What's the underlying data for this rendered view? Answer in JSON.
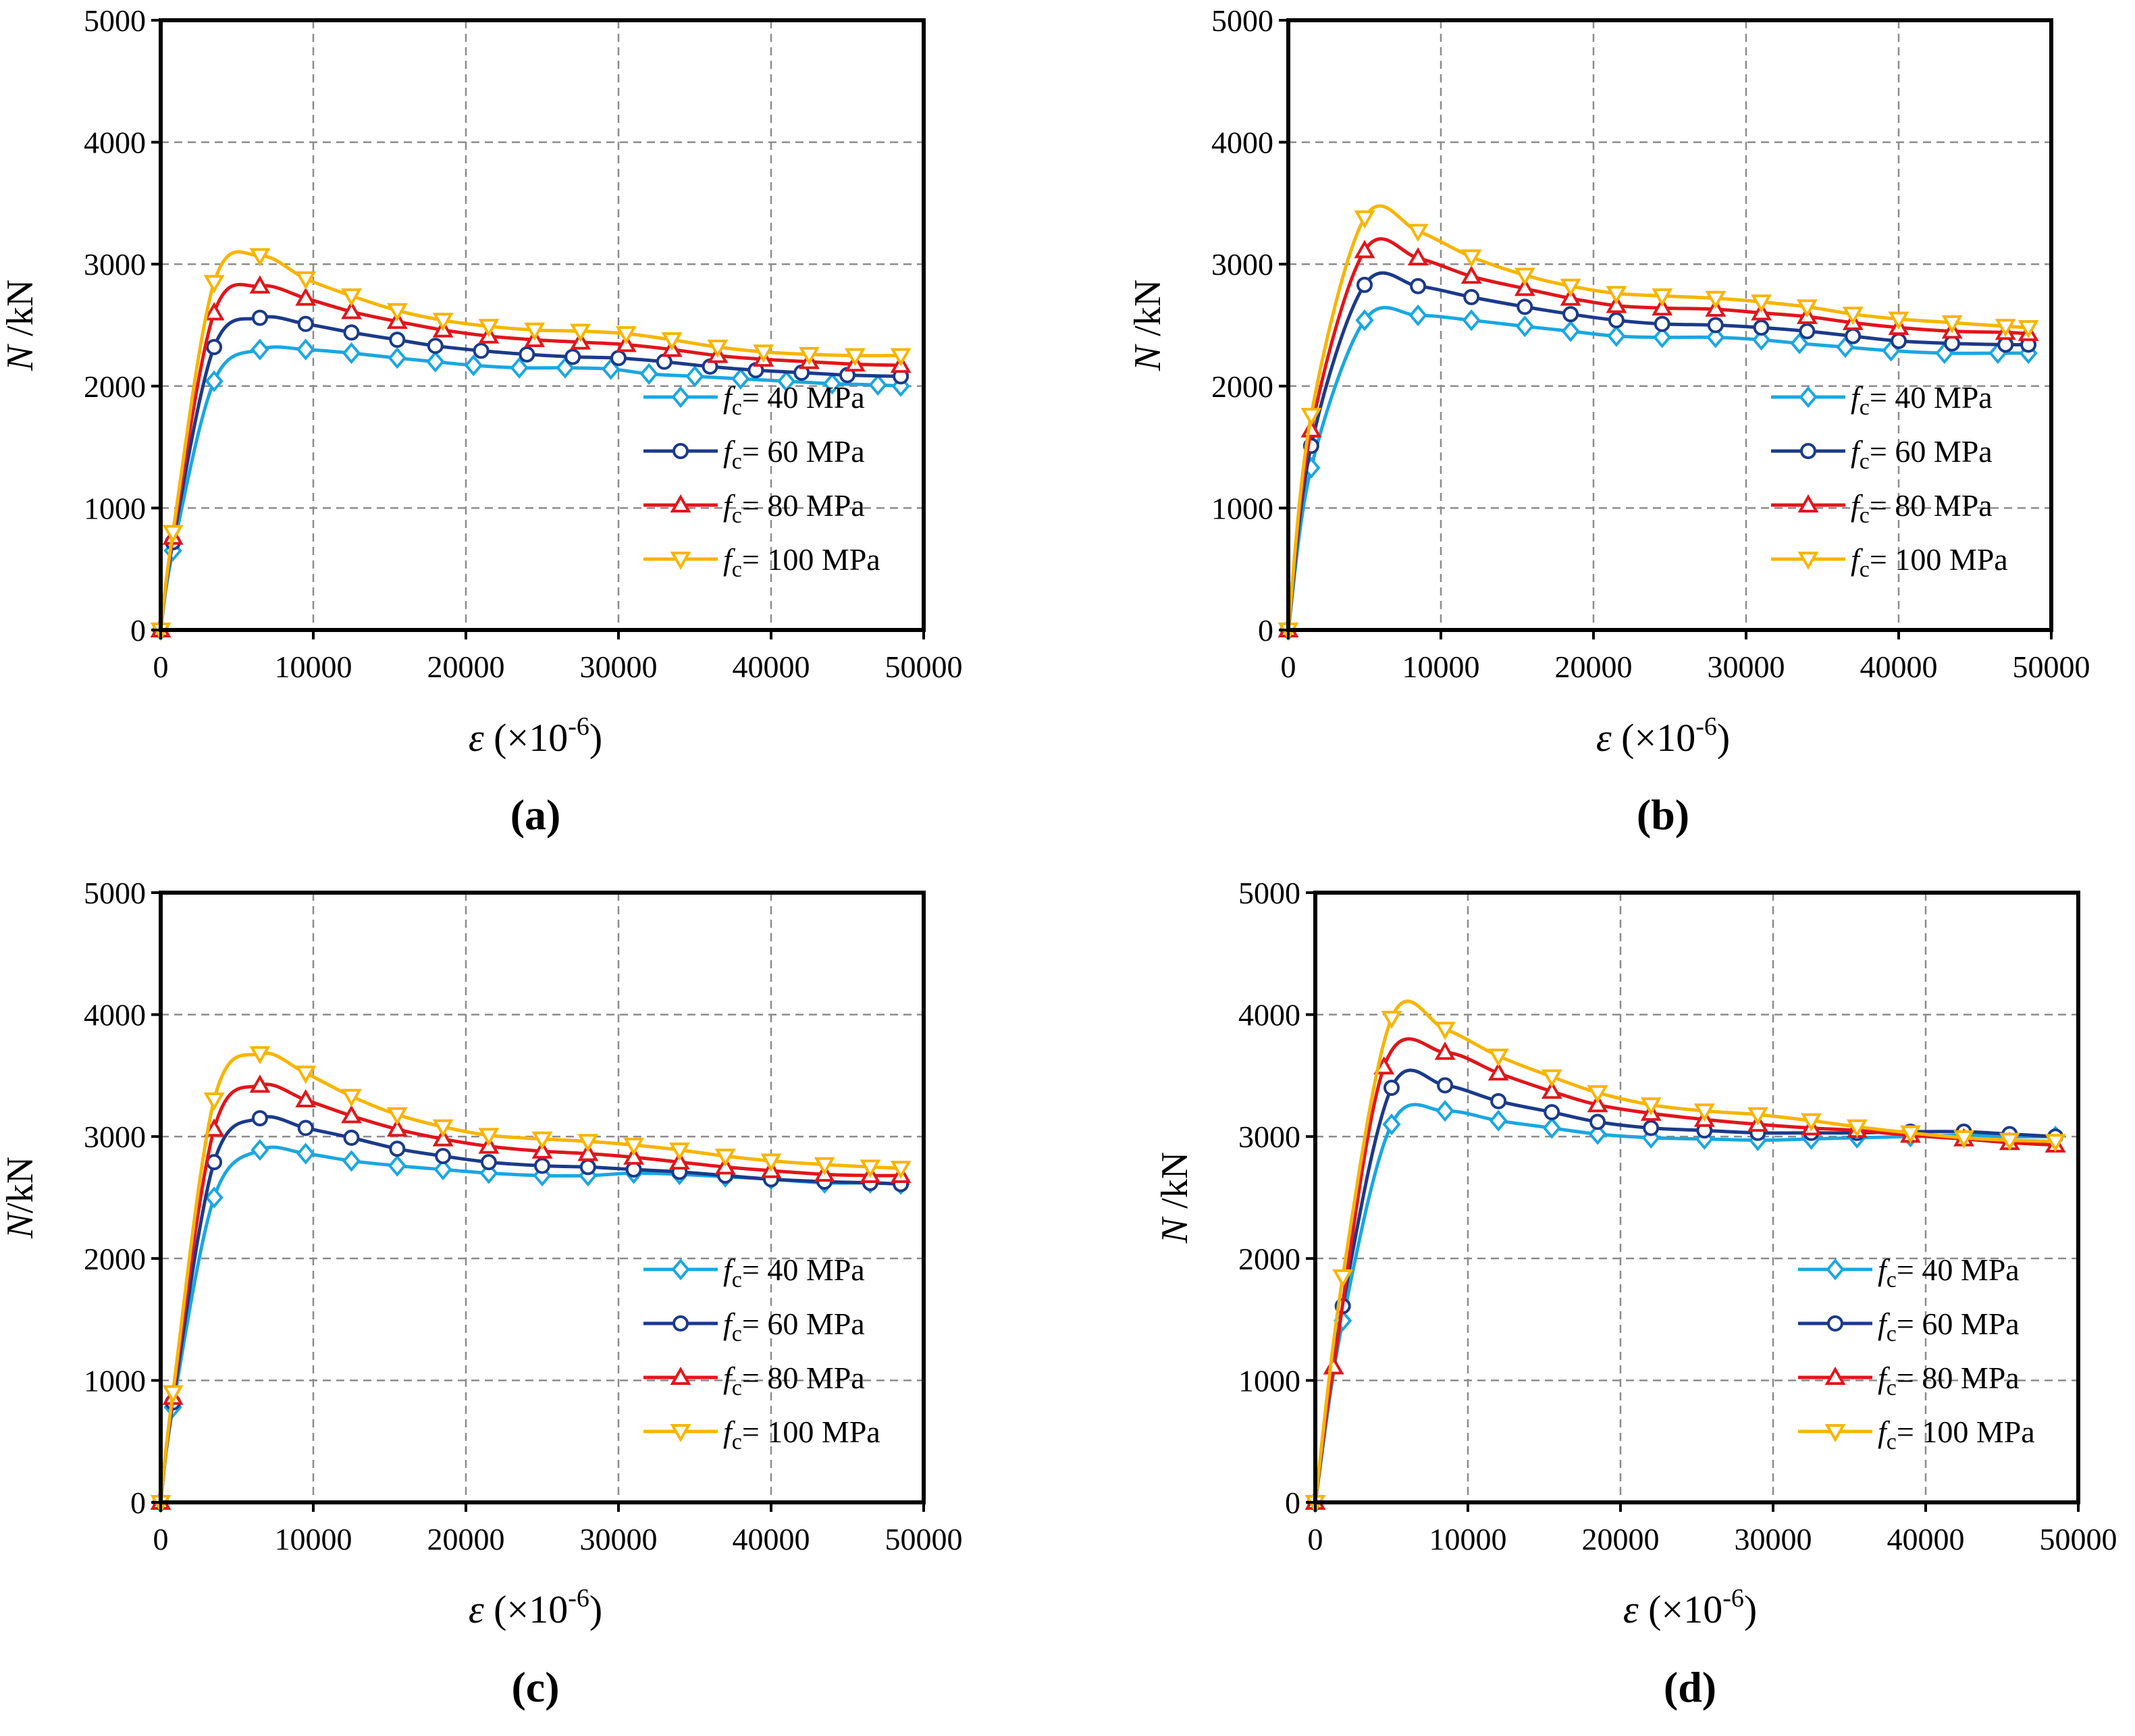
{
  "figure": {
    "panel_labels": [
      "(a)",
      "(b)",
      "(c)",
      "(d)"
    ]
  },
  "colors": {
    "fc40": "#1aa7e0",
    "fc60": "#1b3a8a",
    "fc80": "#e0161b",
    "fc100": "#f7b500",
    "grid": "#8c8c8c",
    "axis": "#000000"
  },
  "chart_data": [
    {
      "type": "line",
      "label": "(a)",
      "ylabel_symbol": "N",
      "ylabel_unit": " /kN",
      "xlabel_symbol": "ε",
      "xlabel_unit": " (×10",
      "xlabel_exp": "-6",
      "xlabel_close": ")",
      "xlim": [
        0,
        50000
      ],
      "ylim": [
        0,
        5000
      ],
      "xticks": [
        0,
        10000,
        20000,
        30000,
        40000,
        50000
      ],
      "yticks": [
        0,
        1000,
        2000,
        3000,
        4000,
        5000
      ],
      "grid": true,
      "legend_position": "lower-right",
      "series": [
        {
          "name": "fc= 40 MPa",
          "sym": "f",
          "sub": "c",
          "rest": "= 40 MPa",
          "marker": "diamond",
          "color_key": "fc40",
          "x": [
            0,
            800,
            3500,
            6500,
            9500,
            12500,
            15500,
            18000,
            20500,
            23500,
            26500,
            29500,
            32000,
            35000,
            38000,
            41000,
            44000,
            47000,
            48500
          ],
          "y": [
            0,
            650,
            2040,
            2300,
            2300,
            2270,
            2230,
            2200,
            2170,
            2150,
            2150,
            2140,
            2100,
            2080,
            2060,
            2040,
            2020,
            2010,
            2000
          ]
        },
        {
          "name": "fc= 60 MPa",
          "sym": "f",
          "sub": "c",
          "rest": "= 60 MPa",
          "marker": "circle",
          "color_key": "fc60",
          "x": [
            0,
            800,
            3500,
            6500,
            9500,
            12500,
            15500,
            18000,
            21000,
            24000,
            27000,
            30000,
            33000,
            36000,
            39000,
            42000,
            45000,
            48500
          ],
          "y": [
            0,
            720,
            2320,
            2560,
            2510,
            2440,
            2380,
            2330,
            2290,
            2260,
            2240,
            2230,
            2200,
            2160,
            2130,
            2110,
            2090,
            2080
          ]
        },
        {
          "name": "fc= 80 MPa",
          "sym": "f",
          "sub": "c",
          "rest": "= 80 MPa",
          "marker": "triangle-up",
          "color_key": "fc80",
          "x": [
            0,
            800,
            3500,
            6500,
            9500,
            12500,
            15500,
            18500,
            21500,
            24500,
            27500,
            30500,
            33500,
            36500,
            39500,
            42500,
            45500,
            48500
          ],
          "y": [
            0,
            760,
            2600,
            2820,
            2720,
            2610,
            2530,
            2460,
            2410,
            2380,
            2360,
            2340,
            2300,
            2250,
            2220,
            2200,
            2180,
            2170
          ]
        },
        {
          "name": "fc= 100 MPa",
          "sym": "f",
          "sub": "c",
          "rest": "= 100 MPa",
          "marker": "triangle-down",
          "color_key": "fc100",
          "x": [
            0,
            800,
            3500,
            6500,
            9500,
            12500,
            15500,
            18500,
            21500,
            24500,
            27500,
            30500,
            33500,
            36500,
            39500,
            42500,
            45500,
            48500
          ],
          "y": [
            0,
            800,
            2850,
            3070,
            2880,
            2740,
            2620,
            2540,
            2490,
            2460,
            2450,
            2430,
            2380,
            2320,
            2280,
            2260,
            2250,
            2250
          ]
        }
      ]
    },
    {
      "type": "line",
      "label": "(b)",
      "ylabel_symbol": "N",
      "ylabel_unit": " /kN",
      "xlabel_symbol": "ε",
      "xlabel_unit": " (×10",
      "xlabel_exp": "-6",
      "xlabel_close": ")",
      "xlim": [
        0,
        50000
      ],
      "ylim": [
        0,
        5000
      ],
      "xticks": [
        0,
        10000,
        20000,
        30000,
        40000,
        50000
      ],
      "yticks": [
        0,
        1000,
        2000,
        3000,
        4000,
        5000
      ],
      "grid": true,
      "legend_position": "lower-right",
      "series": [
        {
          "name": "fc= 40 MPa",
          "sym": "f",
          "sub": "c",
          "rest": "= 40 MPa",
          "marker": "diamond",
          "color_key": "fc40",
          "x": [
            0,
            1500,
            5000,
            8500,
            12000,
            15500,
            18500,
            21500,
            24500,
            28000,
            31000,
            33500,
            36500,
            39500,
            43000,
            46500,
            48500
          ],
          "y": [
            0,
            1330,
            2540,
            2580,
            2540,
            2490,
            2450,
            2410,
            2400,
            2400,
            2380,
            2350,
            2320,
            2290,
            2270,
            2270,
            2270
          ]
        },
        {
          "name": "fc= 60 MPa",
          "sym": "f",
          "sub": "c",
          "rest": "= 60 MPa",
          "marker": "circle",
          "color_key": "fc60",
          "x": [
            0,
            1500,
            5000,
            8500,
            12000,
            15500,
            18500,
            21500,
            24500,
            28000,
            31000,
            34000,
            37000,
            40000,
            43500,
            47000,
            48500
          ],
          "y": [
            0,
            1510,
            2830,
            2820,
            2730,
            2650,
            2590,
            2540,
            2510,
            2500,
            2480,
            2450,
            2410,
            2370,
            2350,
            2340,
            2340
          ]
        },
        {
          "name": "fc= 80 MPa",
          "sym": "f",
          "sub": "c",
          "rest": "= 80 MPa",
          "marker": "triangle-up",
          "color_key": "fc80",
          "x": [
            0,
            1500,
            5000,
            8500,
            12000,
            15500,
            18500,
            21500,
            24500,
            28000,
            31000,
            34000,
            37000,
            40000,
            43500,
            47000,
            48500
          ],
          "y": [
            0,
            1640,
            3110,
            3050,
            2900,
            2800,
            2720,
            2660,
            2640,
            2630,
            2600,
            2570,
            2520,
            2480,
            2450,
            2440,
            2430
          ]
        },
        {
          "name": "fc= 100 MPa",
          "sym": "f",
          "sub": "c",
          "rest": "= 100 MPa",
          "marker": "triangle-down",
          "color_key": "fc100",
          "x": [
            0,
            1500,
            5000,
            8500,
            12000,
            15500,
            18500,
            21500,
            24500,
            28000,
            31000,
            34000,
            37000,
            40000,
            43500,
            47000,
            48500
          ],
          "y": [
            0,
            1760,
            3380,
            3270,
            3060,
            2910,
            2820,
            2760,
            2740,
            2720,
            2690,
            2650,
            2590,
            2550,
            2520,
            2490,
            2480
          ]
        }
      ]
    },
    {
      "type": "line",
      "label": "(c)",
      "ylabel_symbol": "N",
      "ylabel_unit": "/kN",
      "xlabel_symbol": "ε",
      "xlabel_unit": " (×10",
      "xlabel_exp": "-6",
      "xlabel_close": ")",
      "xlim": [
        0,
        50000
      ],
      "ylim": [
        0,
        5000
      ],
      "xticks": [
        0,
        10000,
        20000,
        30000,
        40000,
        50000
      ],
      "yticks": [
        0,
        1000,
        2000,
        3000,
        4000,
        5000
      ],
      "grid": true,
      "legend_position": "lower-right",
      "series": [
        {
          "name": "fc= 40 MPa",
          "sym": "f",
          "sub": "c",
          "rest": "= 40 MPa",
          "marker": "diamond",
          "color_key": "fc40",
          "x": [
            0,
            800,
            3500,
            6500,
            9500,
            12500,
            15500,
            18500,
            21500,
            25000,
            28000,
            31000,
            34000,
            37000,
            40000,
            43500,
            46500,
            48500
          ],
          "y": [
            0,
            780,
            2500,
            2890,
            2860,
            2800,
            2760,
            2730,
            2700,
            2680,
            2680,
            2700,
            2690,
            2670,
            2650,
            2620,
            2620,
            2610
          ]
        },
        {
          "name": "fc= 60 MPa",
          "sym": "f",
          "sub": "c",
          "rest": "= 60 MPa",
          "marker": "circle",
          "color_key": "fc60",
          "x": [
            0,
            800,
            3500,
            6500,
            9500,
            12500,
            15500,
            18500,
            21500,
            25000,
            28000,
            31000,
            34000,
            37000,
            40000,
            43500,
            46500,
            48500
          ],
          "y": [
            0,
            820,
            2790,
            3150,
            3070,
            2990,
            2900,
            2840,
            2790,
            2760,
            2750,
            2730,
            2710,
            2680,
            2650,
            2630,
            2620,
            2610
          ]
        },
        {
          "name": "fc= 80 MPa",
          "sym": "f",
          "sub": "c",
          "rest": "= 80 MPa",
          "marker": "triangle-up",
          "color_key": "fc80",
          "x": [
            0,
            800,
            3500,
            6500,
            9500,
            12500,
            15500,
            18500,
            21500,
            25000,
            28000,
            31000,
            34000,
            37000,
            40000,
            43500,
            46500,
            48500
          ],
          "y": [
            0,
            860,
            3060,
            3420,
            3300,
            3170,
            3060,
            2980,
            2920,
            2880,
            2860,
            2830,
            2790,
            2750,
            2720,
            2690,
            2680,
            2680
          ]
        },
        {
          "name": "fc= 100 MPa",
          "sym": "f",
          "sub": "c",
          "rest": "= 100 MPa",
          "marker": "triangle-down",
          "color_key": "fc100",
          "x": [
            0,
            800,
            3500,
            6500,
            9500,
            12500,
            15500,
            18500,
            21500,
            25000,
            28000,
            31000,
            34000,
            37000,
            40000,
            43500,
            46500,
            48500
          ],
          "y": [
            0,
            900,
            3300,
            3680,
            3520,
            3330,
            3180,
            3080,
            3010,
            2980,
            2960,
            2930,
            2890,
            2840,
            2800,
            2770,
            2750,
            2740
          ]
        }
      ]
    },
    {
      "type": "line",
      "label": "(d)",
      "ylabel_symbol": "N",
      "ylabel_unit": " /kN",
      "xlabel_symbol": "ε",
      "xlabel_unit": " (×10",
      "xlabel_exp": "-6",
      "xlabel_close": ")",
      "xlim": [
        0,
        50000
      ],
      "ylim": [
        0,
        5000
      ],
      "xticks": [
        0,
        10000,
        20000,
        30000,
        40000,
        50000
      ],
      "yticks": [
        0,
        1000,
        2000,
        3000,
        4000,
        5000
      ],
      "grid": true,
      "legend_position": "lower-right",
      "series": [
        {
          "name": "fc= 40 MPa",
          "sym": "f",
          "sub": "c",
          "rest": "= 40 MPa",
          "marker": "diamond",
          "color_key": "fc40",
          "x": [
            0,
            1800,
            5000,
            8500,
            12000,
            15500,
            18500,
            22000,
            25500,
            29000,
            32500,
            35500,
            39000,
            42500,
            45500,
            48500
          ],
          "y": [
            0,
            1490,
            3100,
            3210,
            3130,
            3070,
            3020,
            2990,
            2980,
            2970,
            2980,
            2990,
            3000,
            3010,
            3000,
            3000
          ]
        },
        {
          "name": "fc= 60 MPa",
          "sym": "f",
          "sub": "c",
          "rest": "= 60 MPa",
          "marker": "circle",
          "color_key": "fc60",
          "x": [
            0,
            1800,
            5000,
            8500,
            12000,
            15500,
            18500,
            22000,
            25500,
            29000,
            32500,
            35500,
            39000,
            42500,
            45500,
            48500
          ],
          "y": [
            0,
            1610,
            3400,
            3420,
            3290,
            3200,
            3120,
            3070,
            3050,
            3030,
            3030,
            3030,
            3040,
            3040,
            3020,
            3000
          ]
        },
        {
          "name": "fc= 80 MPa",
          "sym": "f",
          "sub": "c",
          "rest": "= 80 MPa",
          "marker": "triangle-up",
          "color_key": "fc80",
          "x": [
            0,
            1200,
            4500,
            8500,
            12000,
            15500,
            18500,
            22000,
            25500,
            29000,
            32500,
            35500,
            39000,
            42500,
            45500,
            48500
          ],
          "y": [
            0,
            1110,
            3570,
            3690,
            3520,
            3370,
            3260,
            3190,
            3140,
            3100,
            3070,
            3050,
            3010,
            2980,
            2950,
            2930
          ]
        },
        {
          "name": "fc= 100 MPa",
          "sym": "f",
          "sub": "c",
          "rest": "= 100 MPa",
          "marker": "triangle-down",
          "color_key": "fc100",
          "x": [
            0,
            1800,
            5000,
            8500,
            12000,
            15500,
            18500,
            22000,
            25500,
            29000,
            32500,
            35500,
            39000,
            42500,
            45500,
            48500
          ],
          "y": [
            0,
            1850,
            3970,
            3880,
            3660,
            3490,
            3360,
            3260,
            3210,
            3180,
            3130,
            3080,
            3030,
            2990,
            2970,
            2960
          ]
        }
      ]
    }
  ]
}
